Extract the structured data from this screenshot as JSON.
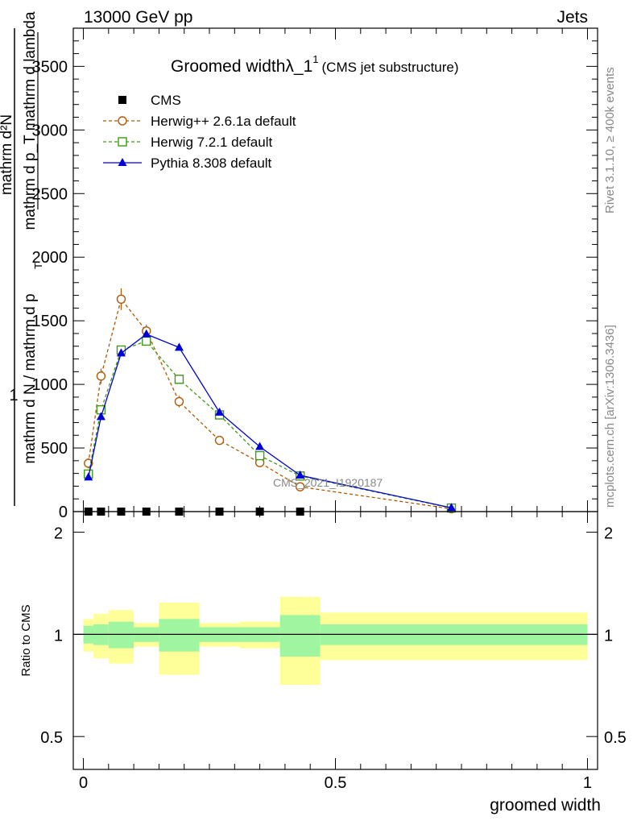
{
  "header": {
    "energy_label": "13000 GeV pp",
    "process_label": "Jets",
    "title_main": "Groomed widthλ_1",
    "title_sup": "1",
    "title_sub": "(CMS jet substructure)",
    "right_label_1": "Rivet 3.1.10, ≥ 400k events",
    "right_label_2": "mcplots.cern.ch [arXiv:1306.3436]",
    "watermark": "CMS_2021_I1920187"
  },
  "main_ylabel": {
    "numerator_line1": "mathrm d²N",
    "numerator_line2": "mathrm d p_T mathrm d lambda",
    "prefix": "1",
    "denominator_line1": "mathrm d N / mathrm d p",
    "denominator_line2": "T"
  },
  "colors": {
    "cms": "#000000",
    "herwig_old": "#b15806",
    "herwig_new": "#3e9a17",
    "pythia": "#0000d6",
    "band_inner": "#a0f5a0",
    "band_outer": "#ffff9a"
  },
  "chart_data": [
    {
      "type": "line",
      "title": "Groomed widthλ_1¹ (CMS jet substructure)",
      "xlabel": "groomed width",
      "ylabel": "1/(mathrm d N / mathrm d p_T) mathrm d²N/(mathrm d p_T mathrm d lambda)",
      "xlim": [
        -0.02,
        1.02
      ],
      "ylim": [
        0,
        3800
      ],
      "yticks": [
        0,
        500,
        1000,
        1500,
        2000,
        2500,
        3000,
        3500
      ],
      "ytick_labels": [
        "0",
        "500",
        "1000",
        "1500",
        "2000",
        "2500",
        "3000",
        "3500"
      ],
      "legend_position": "top-left",
      "series": [
        {
          "name": "CMS",
          "style": "markers",
          "marker": "square-filled",
          "color": "#000000",
          "x": [
            0.01,
            0.035,
            0.075,
            0.125,
            0.19,
            0.27,
            0.35,
            0.43
          ],
          "y": [
            0,
            0,
            0,
            0,
            0,
            0,
            0,
            0
          ]
        },
        {
          "name": "Herwig++ 2.6.1a default",
          "style": "dashed",
          "marker": "circle-open",
          "color": "#b15806",
          "x": [
            0.01,
            0.035,
            0.075,
            0.125,
            0.19,
            0.27,
            0.35,
            0.43,
            0.73
          ],
          "y": [
            380,
            1065,
            1670,
            1420,
            865,
            560,
            385,
            195,
            22
          ],
          "yerr": [
            40,
            60,
            85,
            50,
            45,
            20,
            15,
            10,
            3
          ]
        },
        {
          "name": "Herwig 7.2.1 default",
          "style": "dashed",
          "marker": "square-open",
          "color": "#3e9a17",
          "x": [
            0.01,
            0.035,
            0.075,
            0.125,
            0.19,
            0.27,
            0.35,
            0.43,
            0.73
          ],
          "y": [
            295,
            800,
            1270,
            1340,
            1040,
            760,
            440,
            280,
            28
          ],
          "yerr": [
            15,
            20,
            25,
            25,
            20,
            15,
            12,
            8,
            3
          ]
        },
        {
          "name": "Pythia 8.308 default",
          "style": "solid",
          "marker": "triangle-filled",
          "color": "#0000d6",
          "x": [
            0.01,
            0.035,
            0.075,
            0.125,
            0.19,
            0.27,
            0.35,
            0.43,
            0.73
          ],
          "y": [
            270,
            745,
            1245,
            1395,
            1290,
            780,
            510,
            285,
            30
          ],
          "yerr": [
            10,
            15,
            20,
            20,
            20,
            12,
            10,
            8,
            3
          ]
        }
      ]
    },
    {
      "type": "area",
      "title": "",
      "xlabel": "groomed width",
      "ylabel": "Ratio to CMS",
      "xlim": [
        -0.02,
        1.02
      ],
      "ylim": [
        0.4,
        2.3
      ],
      "xticks": [
        0,
        0.5,
        1
      ],
      "xtick_labels": [
        "0",
        "0.5",
        "1"
      ],
      "yticks": [
        0.5,
        1,
        2
      ],
      "ytick_labels": [
        "0.5",
        "1",
        "2"
      ],
      "reference_line": 1,
      "bins": [
        {
          "x_low": 0.0,
          "x_high": 0.02,
          "inner": [
            0.94,
            1.06
          ],
          "outer": [
            0.89,
            1.11
          ]
        },
        {
          "x_low": 0.02,
          "x_high": 0.05,
          "inner": [
            0.93,
            1.07
          ],
          "outer": [
            0.85,
            1.15
          ]
        },
        {
          "x_low": 0.05,
          "x_high": 0.1,
          "inner": [
            0.91,
            1.09
          ],
          "outer": [
            0.82,
            1.18
          ]
        },
        {
          "x_low": 0.1,
          "x_high": 0.15,
          "inner": [
            0.95,
            1.05
          ],
          "outer": [
            0.92,
            1.08
          ]
        },
        {
          "x_low": 0.15,
          "x_high": 0.23,
          "inner": [
            0.89,
            1.11
          ],
          "outer": [
            0.76,
            1.24
          ]
        },
        {
          "x_low": 0.23,
          "x_high": 0.31,
          "inner": [
            0.95,
            1.05
          ],
          "outer": [
            0.92,
            1.08
          ]
        },
        {
          "x_low": 0.31,
          "x_high": 0.39,
          "inner": [
            0.95,
            1.05
          ],
          "outer": [
            0.91,
            1.09
          ]
        },
        {
          "x_low": 0.39,
          "x_high": 0.47,
          "inner": [
            0.86,
            1.14
          ],
          "outer": [
            0.71,
            1.29
          ]
        },
        {
          "x_low": 0.47,
          "x_high": 1.0,
          "inner": [
            0.93,
            1.07
          ],
          "outer": [
            0.84,
            1.16
          ]
        }
      ]
    }
  ]
}
